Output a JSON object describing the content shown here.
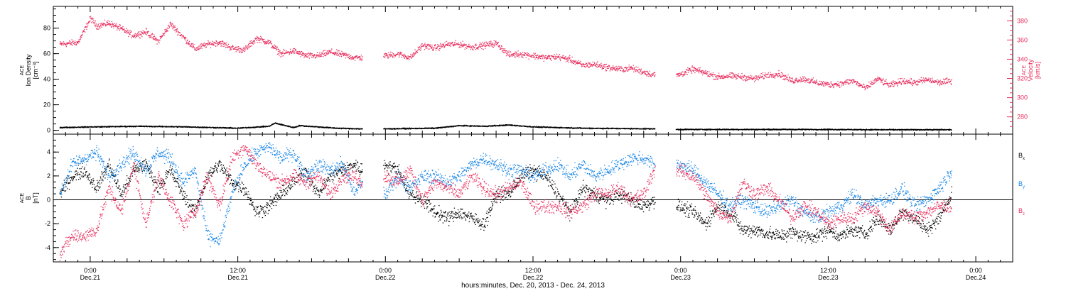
{
  "colors": {
    "black": "#000000",
    "pink": "#e8305f",
    "blue": "#1a86e6"
  },
  "xaxis": {
    "title": "hours:minutes, Dec. 20, 2013 - Dec. 24, 2013",
    "ticks": [
      {
        "t": 0,
        "time": "0:00",
        "day": "Dec.21"
      },
      {
        "t": 12,
        "time": "12:00",
        "day": "Dec.21"
      },
      {
        "t": 24,
        "time": "0:00",
        "day": "Dec.22"
      },
      {
        "t": 36,
        "time": "12:00",
        "day": "Dec.22"
      },
      {
        "t": 48,
        "time": "0:00",
        "day": "Dec.23"
      },
      {
        "t": 60,
        "time": "12:00",
        "day": "Dec.23"
      },
      {
        "t": 72,
        "time": "0:00",
        "day": "Dec.24"
      }
    ]
  },
  "chart_data": [
    {
      "type": "scatter",
      "panel": "top",
      "xlim": [
        "Dec. 20 21:00",
        "Dec. 24 03:00"
      ],
      "left_axis": {
        "label_lines": [
          "ACE",
          "Ion Density",
          "[cm⁻³]"
        ],
        "ylim": [
          -3,
          97
        ],
        "ticks": [
          "0",
          "20",
          "40",
          "60",
          "80"
        ]
      },
      "right_axis": {
        "label_lines": [
          "ACE",
          "Velocity",
          "[km/s]"
        ],
        "ylim": [
          262,
          395
        ],
        "ticks": [
          "280",
          "300",
          "320",
          "340",
          "360",
          "380"
        ]
      },
      "data_gaps_hours": [
        [
          22.1,
          23.8
        ],
        [
          45.9,
          47.6
        ]
      ],
      "series": [
        {
          "axis": "right",
          "color": "#e8305f",
          "t_hours": [
            -2.5,
            -1.0,
            0.0,
            0.5,
            1.5,
            2.5,
            3.5,
            4.5,
            5.5,
            6.5,
            7.5,
            8.5,
            9.5,
            10.5,
            11.5,
            12.5,
            13.5,
            14.5,
            15.5,
            16.5,
            17.5,
            18.5,
            19.5,
            20.5,
            21.5,
            22.0,
            24.0,
            25.0,
            26.0,
            27.0,
            28.0,
            29.0,
            30.0,
            31.0,
            32.0,
            33.0,
            34.0,
            35.0,
            36.0,
            37.0,
            38.0,
            39.0,
            40.0,
            41.0,
            42.0,
            43.0,
            44.0,
            45.0,
            45.8,
            47.8,
            49.0,
            50.0,
            51.0,
            52.0,
            53.0,
            54.0,
            55.0,
            56.0,
            57.0,
            58.0,
            59.0,
            60.0,
            61.0,
            62.0,
            63.0,
            64.0,
            65.0,
            66.0,
            67.0,
            68.0,
            69.0,
            70.0
          ],
          "values": [
            356,
            358,
            383,
            375,
            378,
            372,
            365,
            369,
            359,
            377,
            364,
            351,
            356,
            358,
            352,
            350,
            362,
            358,
            346,
            349,
            344,
            344,
            348,
            345,
            342,
            342,
            344,
            346,
            342,
            355,
            352,
            356,
            356,
            353,
            355,
            357,
            345,
            346,
            344,
            342,
            343,
            340,
            334,
            335,
            332,
            330,
            331,
            327,
            324,
            324,
            330,
            326,
            322,
            323,
            322,
            320,
            324,
            325,
            318,
            320,
            316,
            314,
            315,
            318,
            310,
            320,
            313,
            318,
            316,
            319,
            316,
            318
          ]
        },
        {
          "axis": "left",
          "color": "#000000",
          "t_hours": [
            -2.5,
            0.0,
            4.0,
            8.0,
            12.0,
            14.5,
            15.0,
            16.5,
            17.0,
            20.0,
            22.0,
            24.0,
            28.0,
            30.0,
            32.0,
            34.0,
            36.0,
            40.0,
            45.8,
            47.8,
            52.0,
            56.0,
            60.0,
            64.0,
            70.0
          ],
          "values": [
            2.5,
            3.0,
            3.5,
            3.0,
            2.0,
            3.5,
            6.0,
            2.5,
            4.0,
            2.0,
            1.5,
            1.5,
            2.0,
            4.0,
            3.5,
            4.5,
            3.0,
            2.0,
            1.5,
            1.0,
            1.0,
            1.0,
            1.0,
            0.8,
            0.8
          ]
        }
      ]
    },
    {
      "type": "scatter",
      "panel": "bottom",
      "xlim": [
        "Dec. 20 21:00",
        "Dec. 24 03:00"
      ],
      "left_axis": {
        "label_lines": [
          "ACE",
          "B",
          "[nT]"
        ],
        "ylim": [
          -5.2,
          5.5
        ],
        "ticks": [
          "-4",
          "-2",
          "0",
          "2",
          "4"
        ]
      },
      "data_gaps_hours": [
        [
          22.1,
          23.8
        ],
        [
          45.9,
          47.6
        ]
      ],
      "series": [
        {
          "name": "Bx",
          "color": "#000000",
          "t_hours": [
            -2.5,
            -1.5,
            -0.5,
            0.5,
            1.5,
            2.5,
            3.5,
            4.5,
            5.5,
            6.5,
            7.5,
            8.5,
            9.5,
            10.5,
            11.5,
            12.5,
            13.5,
            14.5,
            15.5,
            16.5,
            17.5,
            18.5,
            19.5,
            20.5,
            21.5,
            22.0,
            24.0,
            25.0,
            26.0,
            27.0,
            28.0,
            29.0,
            30.0,
            31.0,
            32.0,
            33.0,
            34.0,
            35.0,
            36.0,
            37.0,
            38.0,
            39.0,
            40.0,
            41.0,
            42.0,
            43.0,
            44.0,
            45.0,
            45.8,
            47.8,
            49.0,
            50.0,
            51.0,
            52.0,
            53.0,
            54.0,
            55.0,
            56.0,
            57.0,
            58.0,
            59.0,
            60.0,
            61.0,
            62.0,
            63.0,
            64.0,
            65.0,
            66.0,
            67.0,
            68.0,
            69.0,
            70.0
          ],
          "values": [
            0.5,
            2.0,
            2.5,
            1.0,
            3.0,
            0.5,
            2.5,
            3.0,
            1.0,
            2.5,
            0.5,
            -1.0,
            2.0,
            3.0,
            1.5,
            1.0,
            -1.0,
            -0.5,
            0.5,
            1.5,
            2.5,
            0.5,
            2.0,
            2.5,
            3.0,
            2.5,
            3.0,
            2.5,
            0.5,
            0.0,
            -1.0,
            -1.5,
            -1.0,
            -1.5,
            -2.0,
            0.5,
            0.5,
            2.0,
            2.5,
            2.0,
            0.5,
            -1.0,
            1.0,
            0.5,
            0.0,
            0.5,
            0.0,
            -0.5,
            0.0,
            -0.5,
            -1.0,
            -2.0,
            -0.5,
            -1.0,
            -2.5,
            -2.5,
            -2.8,
            -3.0,
            -2.7,
            -3.0,
            -3.0,
            -2.5,
            -3.0,
            -2.5,
            -2.8,
            -1.5,
            -2.5,
            -1.0,
            -1.5,
            -2.5,
            -1.5,
            0.5
          ]
        },
        {
          "name": "By",
          "color": "#1a86e6",
          "t_hours": [
            -2.5,
            -1.5,
            -0.5,
            0.5,
            1.5,
            2.5,
            3.5,
            4.5,
            5.5,
            6.5,
            7.5,
            8.5,
            9.5,
            10.5,
            11.5,
            12.5,
            13.5,
            14.5,
            15.5,
            16.5,
            17.5,
            18.5,
            19.5,
            20.5,
            21.5,
            22.0,
            24.0,
            25.0,
            26.0,
            27.0,
            28.0,
            29.0,
            30.0,
            31.0,
            32.0,
            33.0,
            34.0,
            35.0,
            36.0,
            37.0,
            38.0,
            39.0,
            40.0,
            41.0,
            42.0,
            43.0,
            44.0,
            45.0,
            45.8,
            47.8,
            49.0,
            50.0,
            51.0,
            52.0,
            53.0,
            54.0,
            55.0,
            56.0,
            57.0,
            58.0,
            59.0,
            60.0,
            61.0,
            62.0,
            63.0,
            64.0,
            65.0,
            66.0,
            67.0,
            68.0,
            69.0,
            70.0
          ],
          "values": [
            0.5,
            3.0,
            3.5,
            4.0,
            2.0,
            3.0,
            4.0,
            2.5,
            4.0,
            3.5,
            1.5,
            2.5,
            -3.0,
            -3.5,
            0.5,
            3.0,
            4.0,
            4.5,
            3.5,
            4.0,
            2.0,
            3.0,
            2.5,
            3.0,
            0.5,
            1.5,
            0.5,
            2.0,
            1.0,
            2.0,
            2.0,
            1.5,
            2.0,
            3.0,
            3.5,
            3.0,
            2.5,
            2.5,
            2.0,
            2.5,
            3.0,
            2.0,
            3.0,
            2.0,
            2.5,
            3.0,
            3.5,
            3.5,
            3.0,
            3.0,
            2.5,
            1.5,
            0.5,
            -0.5,
            0.0,
            -0.5,
            -1.0,
            -0.5,
            0.0,
            -1.0,
            -1.5,
            -1.0,
            -0.5,
            0.5,
            -0.5,
            0.0,
            0.0,
            1.0,
            -0.5,
            0.0,
            1.0,
            2.5
          ]
        },
        {
          "name": "Bz",
          "color": "#e8305f",
          "t_hours": [
            -2.5,
            -1.5,
            -0.5,
            0.5,
            1.5,
            2.5,
            3.5,
            4.5,
            5.5,
            6.5,
            7.5,
            8.5,
            9.5,
            10.5,
            11.5,
            12.5,
            13.5,
            14.5,
            15.5,
            16.5,
            17.5,
            18.5,
            19.5,
            20.5,
            21.5,
            22.0,
            24.0,
            25.0,
            26.0,
            27.0,
            28.0,
            29.0,
            30.0,
            31.0,
            32.0,
            33.0,
            34.0,
            35.0,
            36.0,
            37.0,
            38.0,
            39.0,
            40.0,
            41.0,
            42.0,
            43.0,
            44.0,
            45.0,
            45.8,
            47.8,
            49.0,
            50.0,
            51.0,
            52.0,
            53.0,
            54.0,
            55.0,
            56.0,
            57.0,
            58.0,
            59.0,
            60.0,
            61.0,
            62.0,
            63.0,
            64.0,
            65.0,
            66.0,
            67.0,
            68.0,
            69.0,
            70.0
          ],
          "values": [
            -4.5,
            -3.0,
            -3.0,
            -2.5,
            1.0,
            -1.0,
            3.0,
            -2.0,
            2.0,
            0.0,
            -2.0,
            -1.0,
            2.0,
            -0.5,
            3.5,
            4.5,
            3.0,
            2.0,
            1.5,
            2.0,
            1.5,
            2.0,
            0.5,
            2.0,
            2.0,
            1.5,
            2.0,
            1.5,
            2.5,
            0.0,
            1.5,
            1.0,
            0.5,
            2.0,
            1.0,
            0.5,
            1.0,
            1.5,
            -0.5,
            -0.5,
            -0.5,
            -1.0,
            -0.5,
            0.5,
            0.5,
            1.0,
            0.0,
            0.5,
            2.5,
            2.5,
            2.0,
            0.5,
            -1.0,
            -1.5,
            1.5,
            0.5,
            1.0,
            0.0,
            -1.5,
            -0.5,
            -1.0,
            -2.0,
            -1.5,
            -1.5,
            -0.5,
            -1.0,
            -2.5,
            -1.0,
            -1.5,
            -1.0,
            -0.5,
            -0.5
          ]
        }
      ],
      "legend": [
        {
          "main": "B",
          "sub": "x",
          "color": "#000000"
        },
        {
          "main": "B",
          "sub": "y",
          "color": "#1a86e6"
        },
        {
          "main": "B",
          "sub": "z",
          "color": "#e8305f"
        }
      ],
      "legend_position": "right"
    }
  ]
}
